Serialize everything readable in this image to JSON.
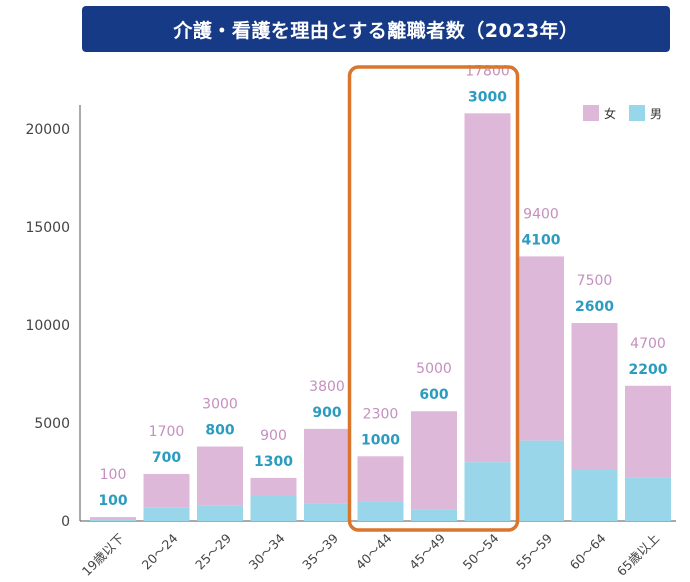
{
  "chart_data": {
    "type": "bar",
    "stacked": true,
    "title": "介護・看護を理由とする離職者数（2023年）",
    "categories": [
      "19歳以下",
      "20〜24",
      "25〜29",
      "30〜34",
      "35〜39",
      "40〜44",
      "45〜49",
      "50〜54",
      "55〜59",
      "60〜64",
      "65歳以上"
    ],
    "series": [
      {
        "name": "男",
        "color": "#99d6e9",
        "values": [
          100,
          700,
          800,
          1300,
          900,
          1000,
          600,
          3000,
          4100,
          2600,
          2200
        ]
      },
      {
        "name": "女",
        "color": "#deb8d8",
        "values": [
          100,
          1700,
          3000,
          900,
          3800,
          2300,
          5000,
          17800,
          9400,
          7500,
          4700
        ]
      }
    ],
    "data_labels": {
      "女": [
        "100",
        "1700",
        "3000",
        "900",
        "3800",
        "2300",
        "5000",
        "17800",
        "9400",
        "7500",
        "4700"
      ],
      "男": [
        "100",
        "700",
        "800",
        "1300",
        "900",
        "1000",
        "600",
        "3000",
        "4100",
        "2600",
        "2200"
      ]
    },
    "yticks": [
      "0",
      "5000",
      "10000",
      "15000",
      "20000"
    ],
    "ylim": [
      0,
      21000
    ],
    "legend": [
      {
        "name": "女",
        "color": "#deb8d8"
      },
      {
        "name": "男",
        "color": "#99d6e9"
      }
    ],
    "highlight": {
      "categories": [
        "40〜44",
        "45〜49",
        "50〜54"
      ],
      "color": "#d9762b"
    },
    "xlabel": "",
    "ylabel": ""
  }
}
